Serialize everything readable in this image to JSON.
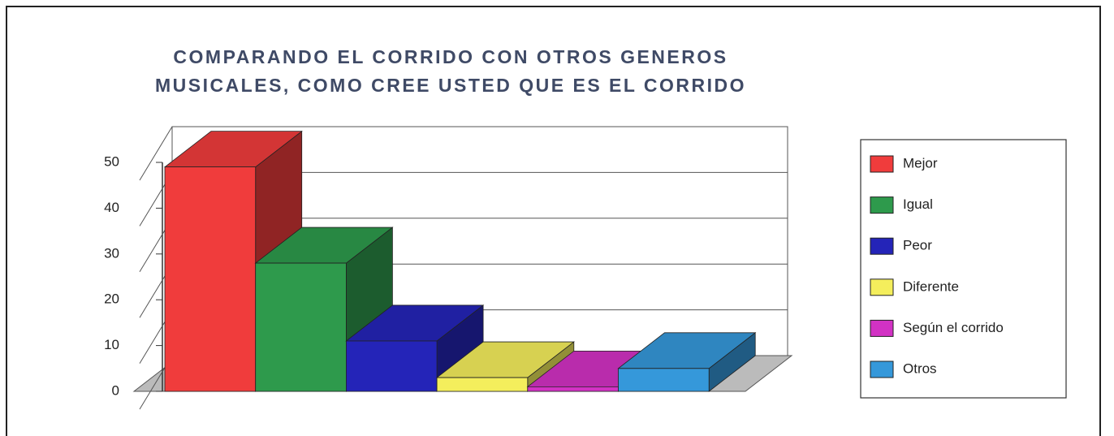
{
  "chart_data": {
    "type": "bar3d",
    "title": [
      "COMPARANDO EL CORRIDO CON OTROS GENEROS",
      "MUSICALES, COMO CREE USTED QUE ES EL CORRIDO"
    ],
    "categories": [
      "Mejor",
      "Igual",
      "Peor",
      "Diferente",
      "Según el corrido",
      "Otros"
    ],
    "values": [
      49,
      28,
      11,
      3,
      1,
      5
    ],
    "colors": [
      "#f03c3c",
      "#2e9a4c",
      "#2424b8",
      "#f4ee5c",
      "#d232c4",
      "#3598da"
    ],
    "ylim": [
      0,
      50
    ],
    "yticks": [
      0,
      10,
      20,
      30,
      40,
      50
    ],
    "grid": true,
    "legend": "right"
  }
}
